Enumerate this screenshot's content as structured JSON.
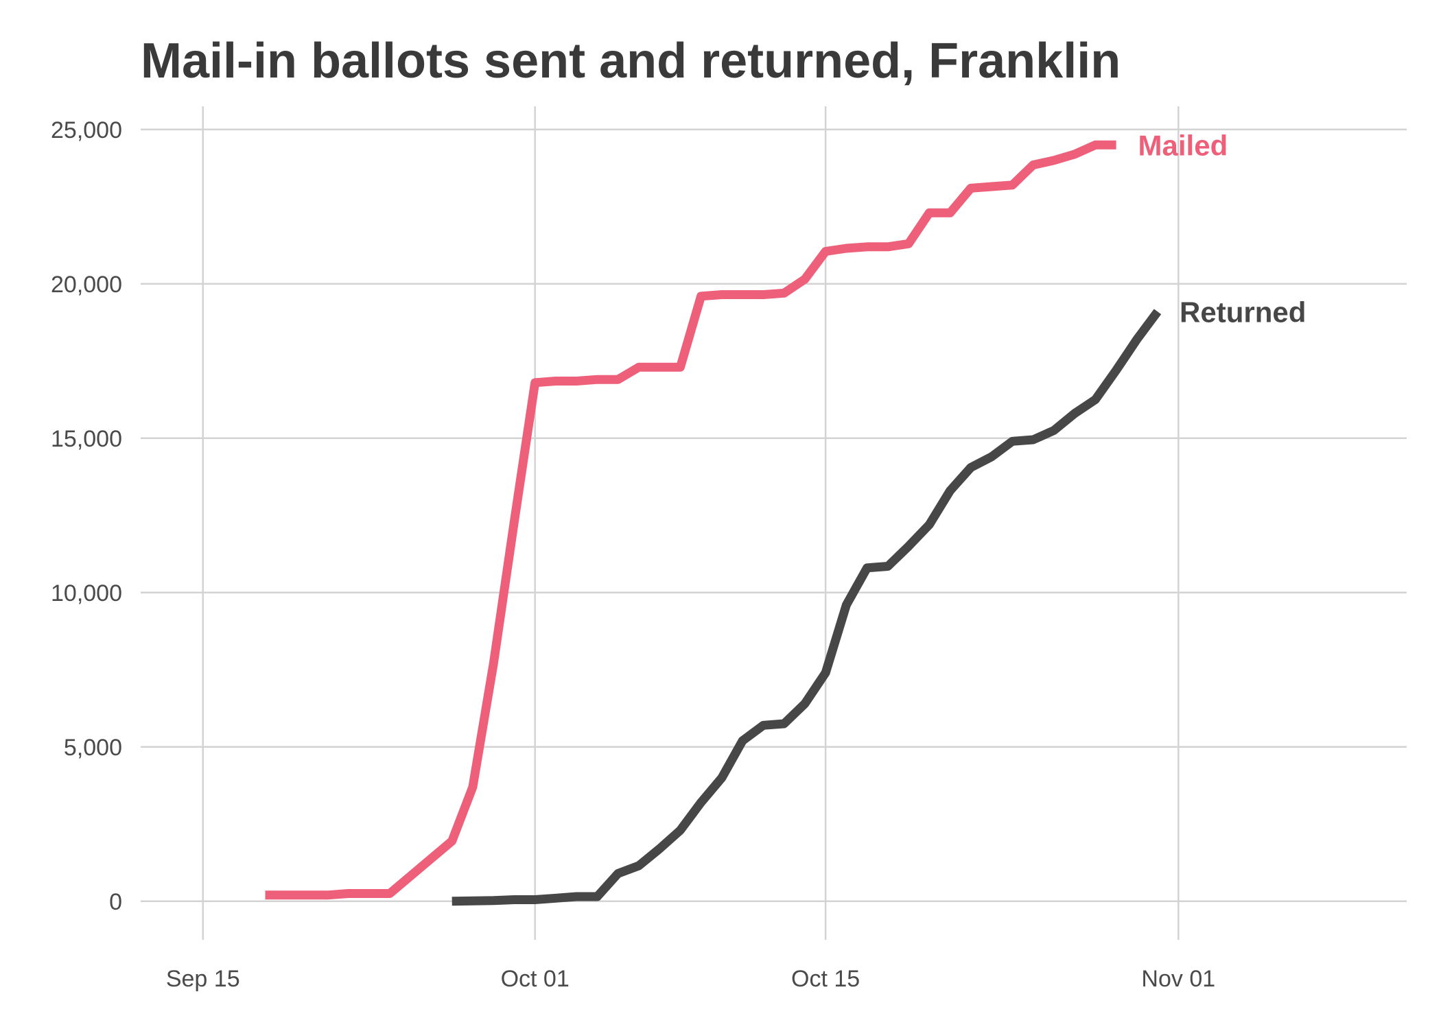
{
  "chart_data": {
    "type": "line",
    "title": "Mail-in ballots sent and returned, Franklin",
    "xlabel": "",
    "ylabel": "",
    "x_range": [
      "2020-09-12",
      "2020-11-12"
    ],
    "ylim": [
      -1250,
      25750
    ],
    "x_ticks": [
      {
        "date": "2020-09-15",
        "label": "Sep 15"
      },
      {
        "date": "2020-10-01",
        "label": "Oct 01"
      },
      {
        "date": "2020-10-15",
        "label": "Oct 15"
      },
      {
        "date": "2020-11-01",
        "label": "Nov 01"
      }
    ],
    "y_ticks": [
      {
        "value": 0,
        "label": "0"
      },
      {
        "value": 5000,
        "label": "5,000"
      },
      {
        "value": 10000,
        "label": "10,000"
      },
      {
        "value": 15000,
        "label": "15,000"
      },
      {
        "value": 20000,
        "label": "20,000"
      },
      {
        "value": 25000,
        "label": "25,000"
      }
    ],
    "grid": true,
    "legend": "direct labels at line ends",
    "series": [
      {
        "name": "Mailed",
        "color": "#EE5F7A",
        "points": [
          [
            "2020-09-18",
            200
          ],
          [
            "2020-09-19",
            200
          ],
          [
            "2020-09-20",
            200
          ],
          [
            "2020-09-21",
            200
          ],
          [
            "2020-09-22",
            250
          ],
          [
            "2020-09-23",
            250
          ],
          [
            "2020-09-24",
            250
          ],
          [
            "2020-09-27",
            1950
          ],
          [
            "2020-09-28",
            3700
          ],
          [
            "2020-09-29",
            7700
          ],
          [
            "2020-09-30",
            12300
          ],
          [
            "2020-10-01",
            16800
          ],
          [
            "2020-10-02",
            16850
          ],
          [
            "2020-10-03",
            16850
          ],
          [
            "2020-10-04",
            16900
          ],
          [
            "2020-10-05",
            16900
          ],
          [
            "2020-10-06",
            17300
          ],
          [
            "2020-10-07",
            17300
          ],
          [
            "2020-10-08",
            17300
          ],
          [
            "2020-10-09",
            19600
          ],
          [
            "2020-10-10",
            19650
          ],
          [
            "2020-10-11",
            19650
          ],
          [
            "2020-10-12",
            19650
          ],
          [
            "2020-10-13",
            19700
          ],
          [
            "2020-10-14",
            20150
          ],
          [
            "2020-10-15",
            21050
          ],
          [
            "2020-10-16",
            21150
          ],
          [
            "2020-10-17",
            21200
          ],
          [
            "2020-10-18",
            21200
          ],
          [
            "2020-10-19",
            21300
          ],
          [
            "2020-10-20",
            22300
          ],
          [
            "2020-10-21",
            22300
          ],
          [
            "2020-10-22",
            23100
          ],
          [
            "2020-10-23",
            23150
          ],
          [
            "2020-10-24",
            23200
          ],
          [
            "2020-10-25",
            23850
          ],
          [
            "2020-10-26",
            24000
          ],
          [
            "2020-10-27",
            24200
          ],
          [
            "2020-10-28",
            24500
          ],
          [
            "2020-10-29",
            24500
          ]
        ]
      },
      {
        "name": "Returned",
        "color": "#474747",
        "points": [
          [
            "2020-09-27",
            0
          ],
          [
            "2020-09-28",
            10
          ],
          [
            "2020-09-29",
            20
          ],
          [
            "2020-09-30",
            50
          ],
          [
            "2020-10-01",
            50
          ],
          [
            "2020-10-02",
            100
          ],
          [
            "2020-10-03",
            150
          ],
          [
            "2020-10-04",
            150
          ],
          [
            "2020-10-05",
            900
          ],
          [
            "2020-10-06",
            1150
          ],
          [
            "2020-10-07",
            1700
          ],
          [
            "2020-10-08",
            2300
          ],
          [
            "2020-10-09",
            3200
          ],
          [
            "2020-10-10",
            4000
          ],
          [
            "2020-10-11",
            5200
          ],
          [
            "2020-10-12",
            5700
          ],
          [
            "2020-10-13",
            5750
          ],
          [
            "2020-10-14",
            6400
          ],
          [
            "2020-10-15",
            7400
          ],
          [
            "2020-10-16",
            9600
          ],
          [
            "2020-10-17",
            10800
          ],
          [
            "2020-10-18",
            10850
          ],
          [
            "2020-10-19",
            11500
          ],
          [
            "2020-10-20",
            12200
          ],
          [
            "2020-10-21",
            13300
          ],
          [
            "2020-10-22",
            14050
          ],
          [
            "2020-10-23",
            14400
          ],
          [
            "2020-10-24",
            14900
          ],
          [
            "2020-10-25",
            14950
          ],
          [
            "2020-10-26",
            15250
          ],
          [
            "2020-10-27",
            15800
          ],
          [
            "2020-10-28",
            16250
          ],
          [
            "2020-10-29",
            17200
          ],
          [
            "2020-10-30",
            18200
          ],
          [
            "2020-10-31",
            19100
          ]
        ]
      }
    ]
  }
}
